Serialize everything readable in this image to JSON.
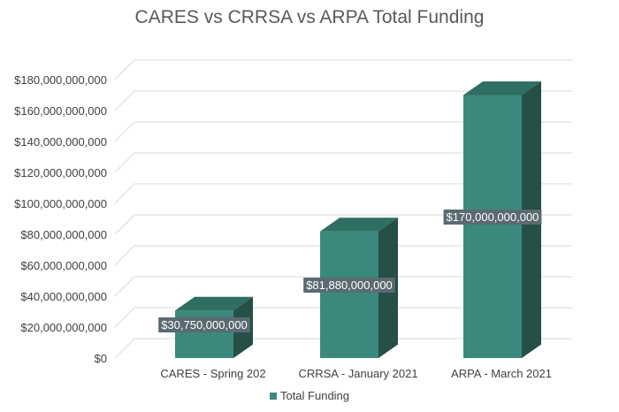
{
  "chart_data": {
    "type": "bar",
    "title": "CARES vs CRRSA vs ARPA Total Funding",
    "categories": [
      "CARES - Spring 202",
      "CRRSA - January 2021",
      "ARPA - March 2021"
    ],
    "series": [
      {
        "name": "Total Funding",
        "values": [
          30750000000,
          81880000000,
          170000000000
        ],
        "data_labels": [
          "$30,750,000,000",
          "$81,880,000,000",
          "$170,000,000,000"
        ]
      }
    ],
    "y_ticks": [
      "$0",
      "$20,000,000,000",
      "$40,000,000,000",
      "$60,000,000,000",
      "$80,000,000,000",
      "$100,000,000,000",
      "$120,000,000,000",
      "$140,000,000,000",
      "$160,000,000,000",
      "$180,000,000,000"
    ],
    "ylim": [
      0,
      180000000000
    ],
    "xlabel": "",
    "ylabel": "",
    "grid": true,
    "legend_position": "bottom",
    "colors": {
      "bar_front": "#3b897c",
      "bar_top": "#2f6e62",
      "bar_side": "#254f47",
      "label_bg": "#5a6a72",
      "grid": "#d9d9d9"
    }
  }
}
